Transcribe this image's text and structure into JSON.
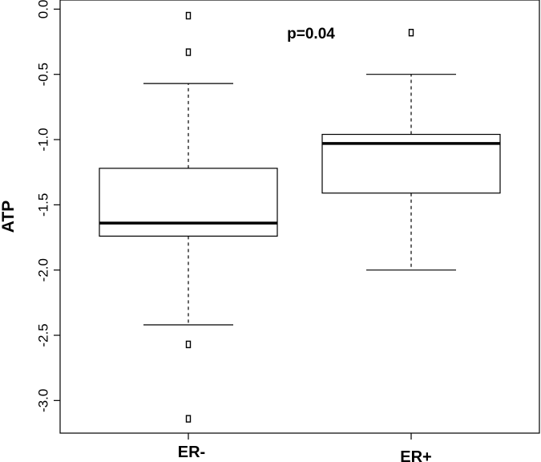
{
  "chart_data": {
    "type": "boxplot",
    "title": "",
    "xlabel": "",
    "ylabel": "ATP",
    "ylim": [
      -3.25,
      0.07
    ],
    "yticks": [
      0.0,
      -0.5,
      -1.0,
      -1.5,
      -2.0,
      -2.5,
      -3.0
    ],
    "ytick_labels": [
      "0.0",
      "-0.5",
      "-1.0",
      "-1.5",
      "-2.0",
      "-2.5",
      "-3.0"
    ],
    "grid": false,
    "annotation": "p=0.04",
    "categories": [
      "ER-",
      "ER+"
    ],
    "boxes": [
      {
        "category": "ER-",
        "whisker_low": -2.42,
        "q1": -1.74,
        "median": -1.64,
        "q3": -1.22,
        "whisker_high": -0.57,
        "outliers": [
          -0.05,
          -0.33,
          -2.57,
          -3.14
        ]
      },
      {
        "category": "ER+",
        "whisker_low": -2.0,
        "q1": -1.41,
        "median": -1.03,
        "q3": -0.96,
        "whisker_high": -0.5,
        "outliers": [
          -0.18
        ]
      }
    ]
  }
}
